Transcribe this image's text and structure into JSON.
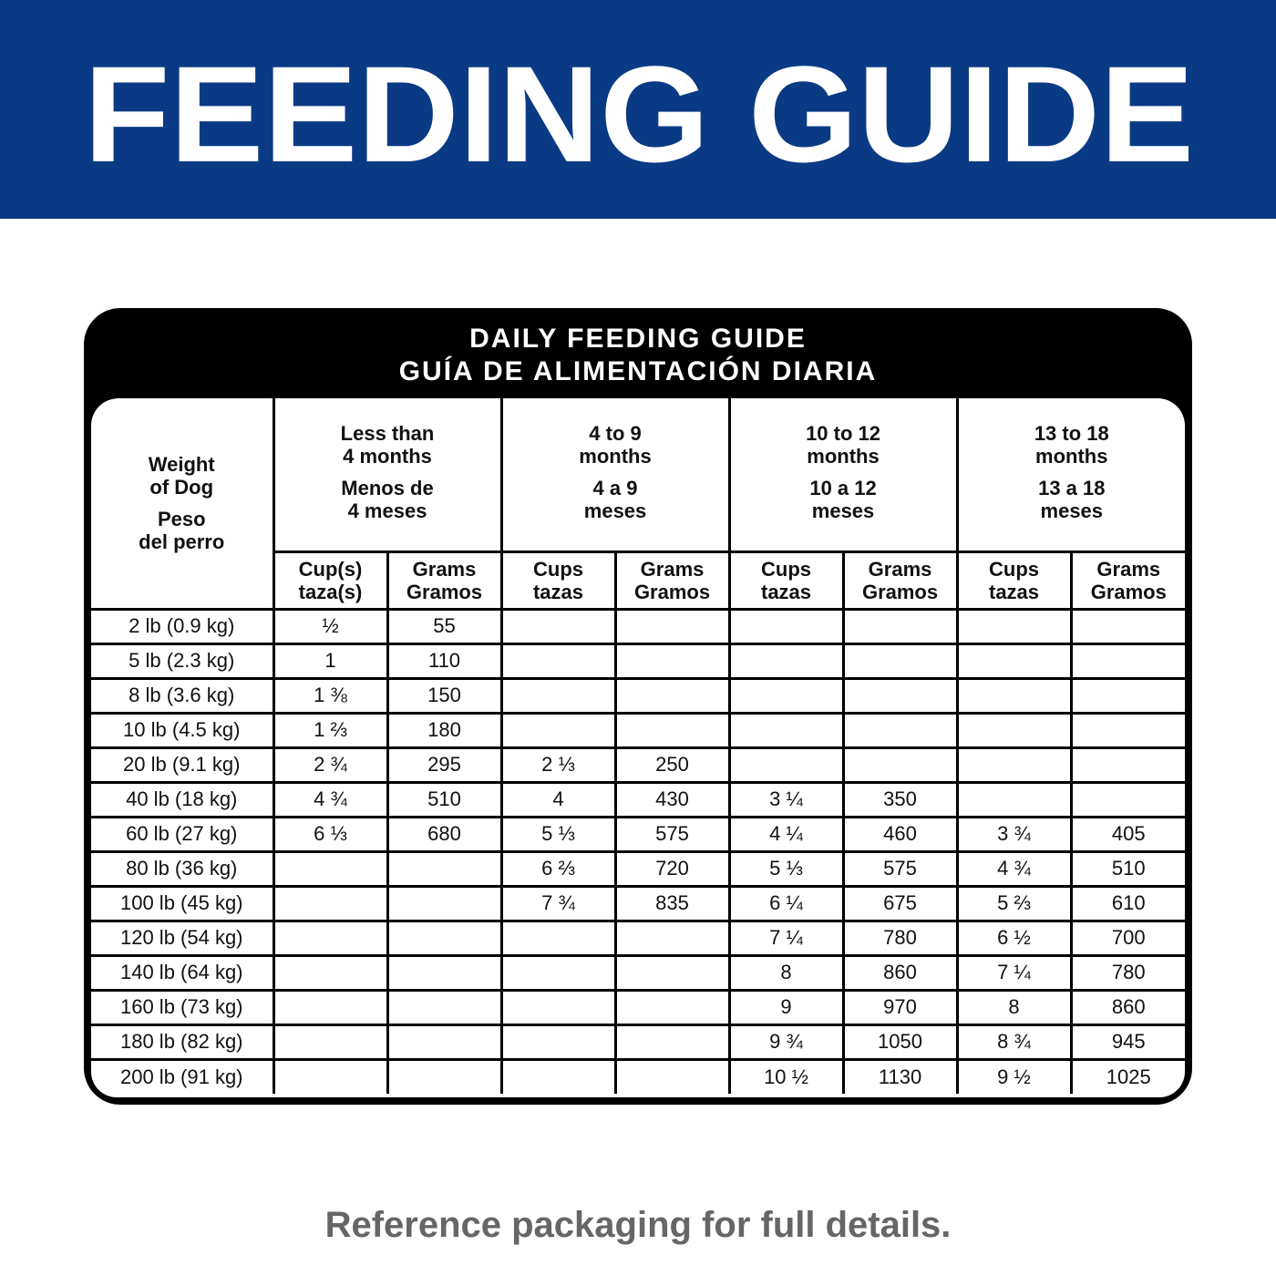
{
  "header": {
    "title": "FEEDING GUIDE"
  },
  "table": {
    "title": [
      "DAILY FEEDING GUIDE",
      "GUÍA DE ALIMENTACIÓN DIARIA"
    ],
    "weight_header": {
      "en": [
        "Weight",
        "of Dog"
      ],
      "es": [
        "Peso",
        "del perro"
      ]
    },
    "age_groups": [
      {
        "en": [
          "Less than",
          "4 months"
        ],
        "es": [
          "Menos de",
          "4 meses"
        ]
      },
      {
        "en": [
          "4 to 9",
          "months"
        ],
        "es": [
          "4 a 9",
          "meses"
        ]
      },
      {
        "en": [
          "10 to 12",
          "months"
        ],
        "es": [
          "10 a 12",
          "meses"
        ]
      },
      {
        "en": [
          "13 to 18",
          "months"
        ],
        "es": [
          "13 a 18",
          "meses"
        ]
      }
    ],
    "subheaders": [
      [
        "Cup(s)",
        "taza(s)"
      ],
      [
        "Grams",
        "Gramos"
      ],
      [
        "Cups",
        "tazas"
      ],
      [
        "Grams",
        "Gramos"
      ],
      [
        "Cups",
        "tazas"
      ],
      [
        "Grams",
        "Gramos"
      ],
      [
        "Cups",
        "tazas"
      ],
      [
        "Grams",
        "Gramos"
      ]
    ],
    "rows": [
      {
        "weight": "2 lb (0.9 kg)",
        "cells": [
          "½",
          55,
          null,
          null,
          null,
          null,
          null,
          null
        ]
      },
      {
        "weight": "5 lb (2.3 kg)",
        "cells": [
          "1",
          110,
          null,
          null,
          null,
          null,
          null,
          null
        ]
      },
      {
        "weight": "8 lb (3.6 kg)",
        "cells": [
          "1 ⅜",
          150,
          null,
          null,
          null,
          null,
          null,
          null
        ]
      },
      {
        "weight": "10 lb (4.5 kg)",
        "cells": [
          "1 ⅔",
          180,
          null,
          null,
          null,
          null,
          null,
          null
        ]
      },
      {
        "weight": "20 lb (9.1 kg)",
        "cells": [
          "2 ¾",
          295,
          "2 ⅓",
          250,
          null,
          null,
          null,
          null
        ]
      },
      {
        "weight": "40 lb (18 kg)",
        "cells": [
          "4 ¾",
          510,
          "4",
          430,
          "3 ¼",
          350,
          null,
          null
        ]
      },
      {
        "weight": "60 lb (27 kg)",
        "cells": [
          "6 ⅓",
          680,
          "5 ⅓",
          575,
          "4 ¼",
          460,
          "3 ¾",
          405
        ]
      },
      {
        "weight": "80 lb (36 kg)",
        "cells": [
          null,
          null,
          "6 ⅔",
          720,
          "5 ⅓",
          575,
          "4 ¾",
          510
        ]
      },
      {
        "weight": "100 lb (45 kg)",
        "cells": [
          null,
          null,
          "7 ¾",
          835,
          "6 ¼",
          675,
          "5 ⅔",
          610
        ]
      },
      {
        "weight": "120 lb (54 kg)",
        "cells": [
          null,
          null,
          null,
          null,
          "7 ¼",
          780,
          "6 ½",
          700
        ]
      },
      {
        "weight": "140 lb (64 kg)",
        "cells": [
          null,
          null,
          null,
          null,
          "8",
          860,
          "7 ¼",
          780
        ]
      },
      {
        "weight": "160 lb (73 kg)",
        "cells": [
          null,
          null,
          null,
          null,
          "9",
          970,
          "8",
          860
        ]
      },
      {
        "weight": "180 lb (82 kg)",
        "cells": [
          null,
          null,
          null,
          null,
          "9 ¾",
          1050,
          "8 ¾",
          945
        ]
      },
      {
        "weight": "200 lb (91 kg)",
        "cells": [
          null,
          null,
          null,
          null,
          "10 ½",
          1130,
          "9 ½",
          1025
        ]
      }
    ]
  },
  "footer": "Reference packaging for full details."
}
